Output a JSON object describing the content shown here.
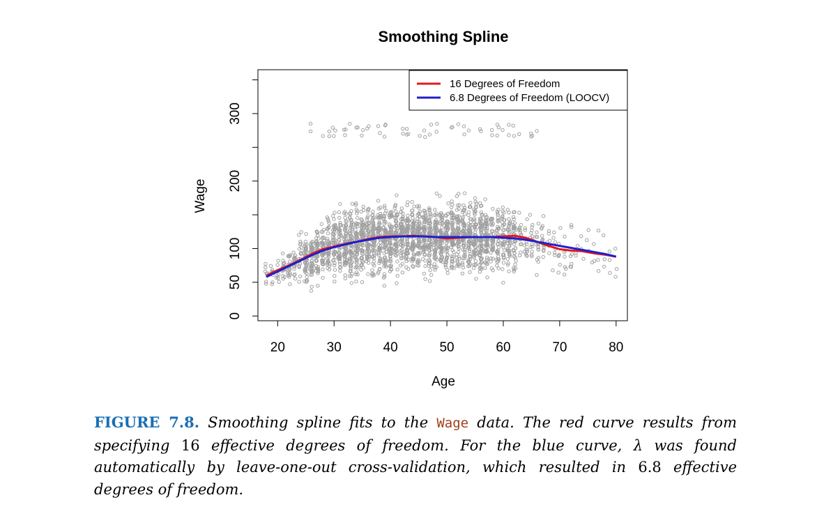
{
  "chart_data": {
    "type": "scatter",
    "title": "Smoothing Spline",
    "xlabel": "Age",
    "ylabel": "Wage",
    "xlim": [
      16.5,
      82
    ],
    "ylim": [
      -7,
      365
    ],
    "x_ticks": [
      "20",
      "30",
      "40",
      "50",
      "60",
      "70",
      "80"
    ],
    "y_ticks": [
      "0",
      "50",
      "100",
      "200",
      "300"
    ],
    "grid": false,
    "legend_position": "top-right",
    "point_color": "#a0a0a0",
    "series": [
      {
        "name": "16 Degrees of Freedom",
        "color": "#e4181c",
        "x": [
          18,
          20,
          22,
          24,
          26,
          28,
          30,
          32,
          34,
          36,
          38,
          40,
          42,
          44,
          46,
          48,
          50,
          52,
          54,
          56,
          58,
          60,
          62,
          64,
          66,
          68,
          70,
          72,
          74,
          76,
          78,
          80
        ],
        "y": [
          60,
          68,
          75,
          83,
          92,
          99,
          103,
          107,
          110,
          114,
          117,
          118,
          118,
          119,
          118,
          117,
          115,
          116,
          117,
          117,
          117,
          118,
          119,
          116,
          110,
          104,
          99,
          97,
          96,
          93,
          91,
          88
        ]
      },
      {
        "name": "6.8 Degrees of Freedom (LOOCV)",
        "color": "#1f1fcc",
        "x": [
          18,
          20,
          22,
          24,
          26,
          28,
          30,
          32,
          34,
          36,
          38,
          40,
          42,
          44,
          46,
          48,
          50,
          52,
          54,
          56,
          58,
          60,
          62,
          64,
          66,
          68,
          70,
          72,
          74,
          76,
          78,
          80
        ],
        "y": [
          58,
          66,
          74,
          82,
          90,
          97,
          102,
          106,
          110,
          113,
          116,
          117,
          118,
          118,
          118,
          117,
          117,
          117,
          117,
          117,
          117,
          116,
          115,
          113,
          110,
          107,
          104,
          101,
          98,
          95,
          92,
          88
        ]
      }
    ]
  },
  "caption": {
    "label": "FIGURE 7.8.",
    "part1": " Smoothing spline fits to the ",
    "code_word": "Wage",
    "part2": " data. The red curve results from specifying ",
    "num1": "16",
    "part3": " effective degrees of freedom. For the blue curve, ",
    "lambda": "λ",
    "part4": " was found automatically by leave-one-out cross-validation, which resulted in ",
    "num2": "6.8",
    "part5": " effective degrees of freedom."
  }
}
